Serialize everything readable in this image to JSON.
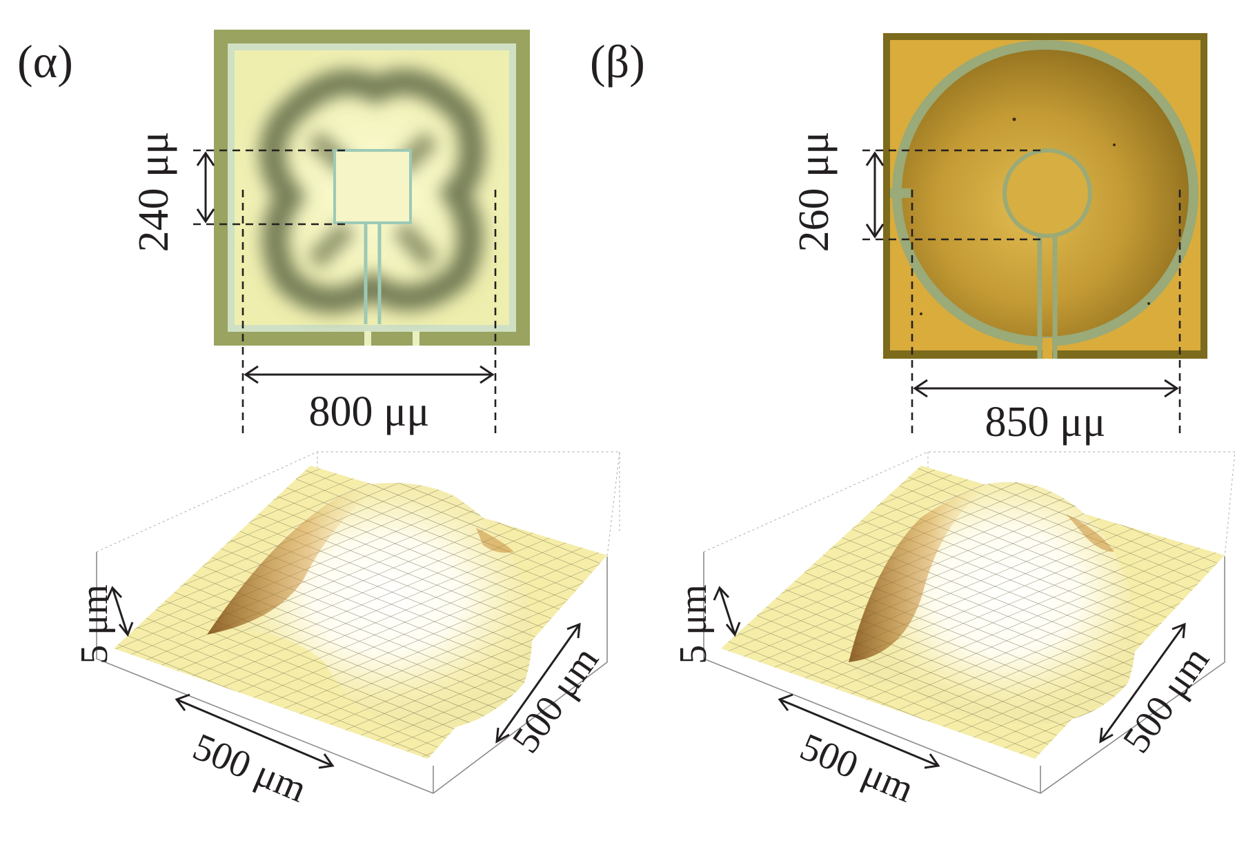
{
  "figure": {
    "panels": [
      {
        "id": "a",
        "label": "(α)",
        "micrograph_shape": "square-electrode",
        "inner_dimension": "240 μμ",
        "outer_dimension": "800 μμ",
        "surface_dimensions": {
          "height": "5 μm",
          "x_length": "500 μm",
          "y_length": "500 μm"
        },
        "colors": {
          "frame": "#9aa35f",
          "field": "#f0f0b4",
          "pattern": "#5f6a45",
          "trace": "#9cc9b6"
        }
      },
      {
        "id": "b",
        "label": "(β)",
        "micrograph_shape": "circular-electrode",
        "inner_dimension": "260 μμ",
        "outer_dimension": "850 μμ",
        "surface_dimensions": {
          "height": "5 μm",
          "x_length": "500 μm",
          "y_length": "500 μm"
        },
        "colors": {
          "frame": "#7c6a1d",
          "field": "#d9ac3c",
          "pattern": "#6f5b1e",
          "trace": "#9aaa78"
        }
      }
    ]
  }
}
